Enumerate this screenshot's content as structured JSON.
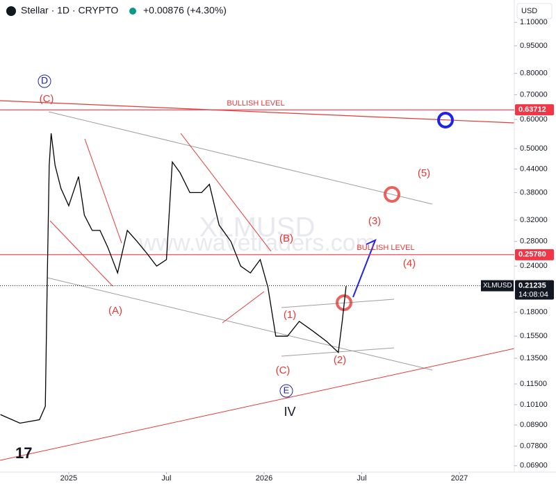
{
  "header": {
    "symbol": "Stellar · 1D · CRYPTO",
    "change": "+0.00876 (+4.30%)",
    "currency": "USD"
  },
  "chart_data": {
    "type": "line",
    "log_scale": true,
    "color": "#000000",
    "x": [
      2024.65,
      2024.75,
      2024.85,
      2024.88,
      2024.89,
      2024.9,
      2024.91,
      2024.93,
      2024.96,
      2025.0,
      2025.05,
      2025.08,
      2025.12,
      2025.16,
      2025.2,
      2025.25,
      2025.3,
      2025.35,
      2025.4,
      2025.45,
      2025.5,
      2025.53,
      2025.57,
      2025.62,
      2025.68,
      2025.72,
      2025.77,
      2025.83,
      2025.88,
      2025.93,
      2025.98,
      2026.02,
      2026.06,
      2026.12,
      2026.18,
      2026.25,
      2026.32,
      2026.38,
      2026.4,
      2026.42
    ],
    "values": [
      0.095,
      0.09,
      0.092,
      0.1,
      0.22,
      0.45,
      0.55,
      0.45,
      0.39,
      0.35,
      0.42,
      0.33,
      0.3,
      0.3,
      0.27,
      0.23,
      0.3,
      0.28,
      0.26,
      0.24,
      0.25,
      0.46,
      0.43,
      0.38,
      0.38,
      0.4,
      0.31,
      0.28,
      0.24,
      0.23,
      0.25,
      0.21,
      0.155,
      0.155,
      0.17,
      0.16,
      0.15,
      0.14,
      0.17,
      0.212
    ],
    "xlim": [
      2024.648,
      2027.281
    ],
    "xticks": [
      {
        "value": 2025,
        "label": "2025"
      },
      {
        "value": 2025.5,
        "label": "Jul"
      },
      {
        "value": 2026,
        "label": "2026"
      },
      {
        "value": 2026.5,
        "label": "Jul"
      },
      {
        "value": 2027,
        "label": "2027"
      }
    ],
    "ylim": [
      0.0663,
      1.265
    ],
    "yticks": [
      {
        "value": 1.1,
        "label": "1.10000"
      },
      {
        "value": 0.95,
        "label": "0.95000"
      },
      {
        "value": 0.8,
        "label": "0.80000"
      },
      {
        "value": 0.7,
        "label": "0.70000"
      },
      {
        "value": 0.6,
        "label": "0.60000"
      },
      {
        "value": 0.5,
        "label": "0.50000"
      },
      {
        "value": 0.44,
        "label": "0.44000"
      },
      {
        "value": 0.38,
        "label": "0.38000"
      },
      {
        "value": 0.32,
        "label": "0.32000"
      },
      {
        "value": 0.28,
        "label": "0.28000"
      },
      {
        "value": 0.24,
        "label": "0.24000"
      },
      {
        "value": 0.18,
        "label": "0.18000"
      },
      {
        "value": 0.155,
        "label": "0.15500"
      },
      {
        "value": 0.135,
        "label": "0.13500"
      },
      {
        "value": 0.115,
        "label": "0.11500"
      },
      {
        "value": 0.101,
        "label": "0.10100"
      },
      {
        "value": 0.089,
        "label": "0.08900"
      },
      {
        "value": 0.078,
        "label": "0.07800"
      },
      {
        "value": 0.069,
        "label": "0.06900"
      }
    ],
    "levels": [
      {
        "value": 0.63712,
        "color": "#f23645"
      },
      {
        "value": {
          "value": 0.2578,
          "label": "0.25780"
        },
        "color": "#f23645"
      }
    ],
    "last_price": {
      "symbol": "XLMUSD",
      "value": 0.21235,
      "countdown": "14:08:04"
    },
    "watermark": [
      "XLMUSD",
      "www.wavetraders.com"
    ],
    "annotations": [
      {
        "text": "D",
        "color": "#1e22aa"
      },
      {
        "text": "(C)",
        "color": "#e53935"
      },
      {
        "text": "BULLISH LEVEL",
        "color": "#e53935"
      },
      {
        "text": "(A)",
        "color": "#e53935"
      },
      {
        "text": "(B)",
        "color": "#e53935"
      },
      {
        "text": "(1)",
        "color": "#e53935"
      },
      {
        "text": "(C)",
        "color": "#e53935"
      },
      {
        "text": "E",
        "color": "#1e22aa"
      },
      {
        "text": "IV",
        "color": "#131722"
      },
      {
        "text": "(2)",
        "color": "#e53935"
      },
      {
        "text": "(3)",
        "color": "#e53935"
      },
      {
        "text": "BULLISH LEVEL",
        "color": "#e53935"
      },
      {
        "text": "(4)",
        "color": "#e53935"
      },
      {
        "text": "(5)",
        "color": "#e53935"
      }
    ]
  }
}
